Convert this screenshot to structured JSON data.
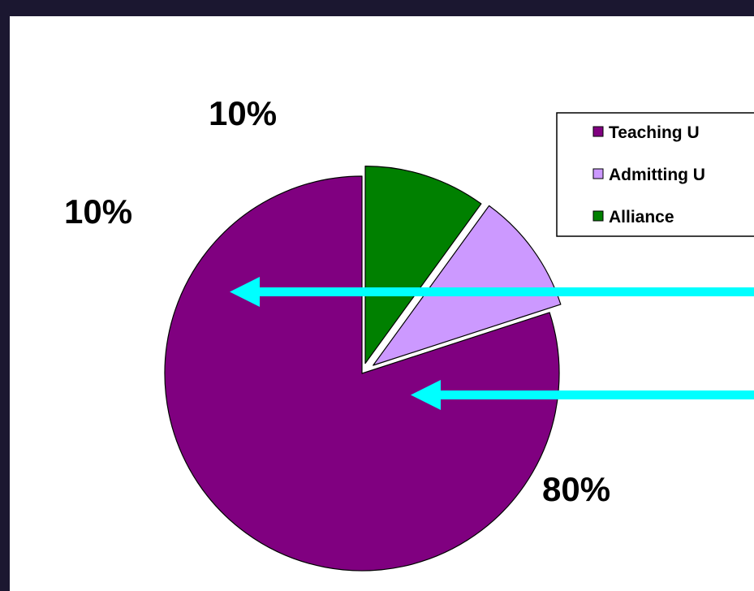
{
  "chart_data": {
    "type": "pie",
    "categories": [
      "Teaching U",
      "Admitting U",
      "Alliance"
    ],
    "values": [
      80,
      10,
      10
    ],
    "data_labels": [
      "80%",
      "10%",
      "10%"
    ],
    "colors": [
      "#800080",
      "#cc99ff",
      "#008000"
    ],
    "exploded": [
      false,
      true,
      true
    ],
    "legend_position": "top-right",
    "title": ""
  },
  "annotations": {
    "arrow_color": "#00ffff",
    "arrows": [
      {
        "points_to": "Admitting U"
      },
      {
        "points_to": "Teaching U"
      }
    ]
  },
  "colors": {
    "background": "#1b1730",
    "panel": "#ffffff"
  }
}
